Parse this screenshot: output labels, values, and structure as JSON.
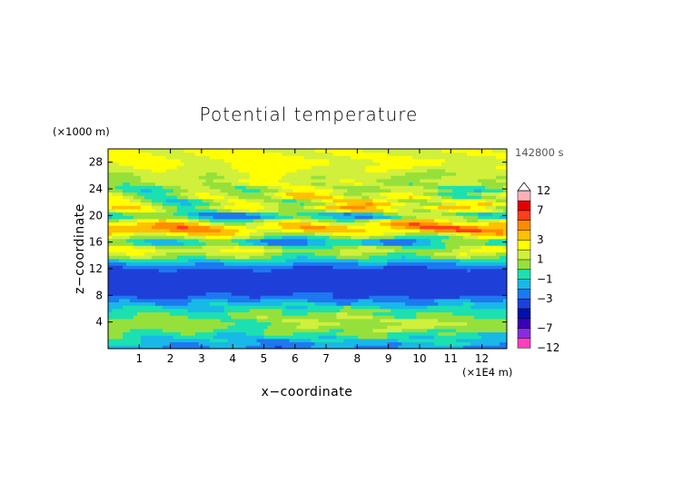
{
  "chart_data": {
    "type": "heatmap",
    "title": "Potential temperature",
    "xlabel": "x−coordinate",
    "ylabel": "z−coordinate",
    "x_unit": "(×1E4 m)",
    "y_unit": "(×1000 m)",
    "time_label": "142800 s",
    "xlim": [
      0,
      12.8
    ],
    "ylim": [
      0,
      30
    ],
    "x_ticks": [
      1,
      2,
      3,
      4,
      5,
      6,
      7,
      8,
      9,
      10,
      11,
      12
    ],
    "y_ticks": [
      4,
      8,
      12,
      16,
      20,
      24,
      28
    ],
    "colorbar": {
      "levels": [
        -12,
        -9,
        -7,
        -5,
        -4,
        -3,
        -2,
        -1,
        0,
        1,
        2,
        3,
        4,
        5,
        7,
        9,
        12
      ],
      "labeled_levels": [
        -12,
        -7,
        -3,
        -1,
        1,
        3,
        7,
        12
      ],
      "colors": [
        "#ff3fbf",
        "#8a2be2",
        "#3a00b8",
        "#0010a8",
        "#1e40d8",
        "#1e78f0",
        "#18b8e8",
        "#1ce0b0",
        "#96e03c",
        "#d0f03c",
        "#ffff00",
        "#ffc000",
        "#ff8c00",
        "#ff3c1e",
        "#e00000",
        "#ffb0b8"
      ],
      "extend": "max"
    },
    "bands": [
      {
        "z": 0.0,
        "base": -2.2,
        "amp": 1.0,
        "kx": 1.2
      },
      {
        "z": 1.0,
        "base": -1.5,
        "amp": 1.0,
        "kx": 1.0
      },
      {
        "z": 2.0,
        "base": -0.5,
        "amp": 1.2,
        "kx": 1.4
      },
      {
        "z": 3.0,
        "base": 0.5,
        "amp": 0.9,
        "kx": 1.1
      },
      {
        "z": 4.0,
        "base": 0.8,
        "amp": 1.0,
        "kx": 0.9
      },
      {
        "z": 5.0,
        "base": 0.3,
        "amp": 1.0,
        "kx": 1.3
      },
      {
        "z": 6.0,
        "base": -0.6,
        "amp": 1.0,
        "kx": 1.0
      },
      {
        "z": 7.0,
        "base": -1.8,
        "amp": 0.9,
        "kx": 1.5
      },
      {
        "z": 8.0,
        "base": -3.2,
        "amp": 0.7,
        "kx": 1.2
      },
      {
        "z": 9.0,
        "base": -3.6,
        "amp": 0.3,
        "kx": 1.0
      },
      {
        "z": 10.0,
        "base": -3.6,
        "amp": 0.3,
        "kx": 1.1
      },
      {
        "z": 11.0,
        "base": -3.5,
        "amp": 0.3,
        "kx": 1.0
      },
      {
        "z": 12.0,
        "base": -3.2,
        "amp": 0.4,
        "kx": 1.2
      },
      {
        "z": 13.0,
        "base": -1.6,
        "amp": 1.0,
        "kx": 1.0
      },
      {
        "z": 14.0,
        "base": 0.6,
        "amp": 1.4,
        "kx": 1.1
      },
      {
        "z": 15.0,
        "base": 1.6,
        "amp": 1.6,
        "kx": 0.9
      },
      {
        "z": 16.0,
        "base": -1.8,
        "amp": 2.0,
        "kx": 1.0
      },
      {
        "z": 17.0,
        "base": 1.5,
        "amp": 2.2,
        "kx": 0.8
      },
      {
        "z": 18.0,
        "base": 4.2,
        "amp": 1.8,
        "kx": 0.9
      },
      {
        "z": 19.0,
        "base": 2.5,
        "amp": 2.5,
        "kx": 1.0
      },
      {
        "z": 20.0,
        "base": -1.5,
        "amp": 2.5,
        "kx": 0.8
      },
      {
        "z": 21.0,
        "base": 2.4,
        "amp": 2.2,
        "kx": 1.1
      },
      {
        "z": 22.0,
        "base": 1.2,
        "amp": 2.8,
        "kx": 0.9
      },
      {
        "z": 23.0,
        "base": 1.8,
        "amp": 2.2,
        "kx": 1.2
      },
      {
        "z": 24.0,
        "base": 0.5,
        "amp": 1.8,
        "kx": 1.0
      },
      {
        "z": 25.0,
        "base": 1.6,
        "amp": 1.2,
        "kx": 1.3
      },
      {
        "z": 26.0,
        "base": 1.2,
        "amp": 1.0,
        "kx": 1.1
      },
      {
        "z": 27.0,
        "base": 1.9,
        "amp": 0.7,
        "kx": 1.0
      },
      {
        "z": 28.0,
        "base": 2.1,
        "amp": 0.6,
        "kx": 0.8
      },
      {
        "z": 30.0,
        "base": 2.0,
        "amp": 0.6,
        "kx": 1.0
      }
    ]
  }
}
